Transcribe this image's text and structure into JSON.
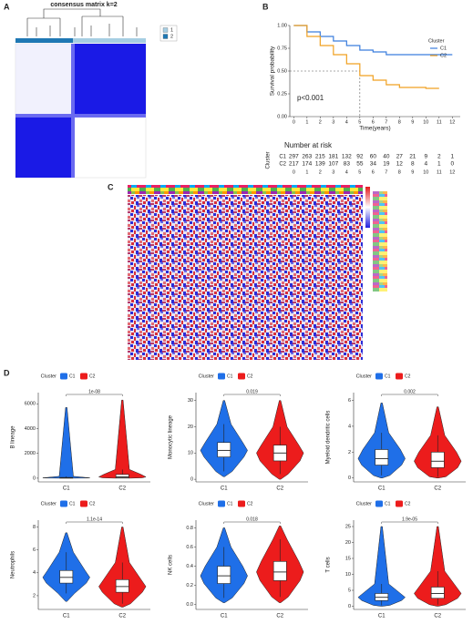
{
  "panel_labels": [
    "A",
    "B",
    "C",
    "D"
  ],
  "chart_data": [
    {
      "type": "consensus",
      "title": "consensus matrix k=2",
      "legend": [
        {
          "name": "1",
          "color": "#a6cee3"
        },
        {
          "name": "2",
          "color": "#1f78b4"
        }
      ]
    },
    {
      "type": "survival",
      "xlabel": "Time(years)",
      "ylabel": "Survival probability",
      "annotation": "p<0.001",
      "legend_title": "Cluster",
      "x": [
        0,
        1,
        2,
        3,
        4,
        5,
        6,
        7,
        8,
        9,
        10,
        11,
        12
      ],
      "series": [
        {
          "name": "C1",
          "color": "#3b7ddd",
          "values": [
            1,
            0.93,
            0.88,
            0.83,
            0.78,
            0.73,
            0.71,
            0.68,
            0.68,
            0.68,
            0.68,
            0.68,
            0.68
          ]
        },
        {
          "name": "C2",
          "color": "#f0a020",
          "values": [
            1,
            0.88,
            0.78,
            0.68,
            0.58,
            0.45,
            0.4,
            0.35,
            0.32,
            0.32,
            0.31,
            0.31,
            null
          ]
        }
      ],
      "xlim": [
        -0.3,
        12.6
      ],
      "ylim": [
        0,
        1
      ],
      "xticks": [
        0,
        1,
        2,
        3,
        4,
        5,
        6,
        7,
        8,
        9,
        10,
        11,
        12
      ],
      "yticks": [
        {
          "value": 0,
          "label": "0.00"
        },
        0.25,
        {
          "value": 0.5,
          "label": "0.50"
        },
        0.75,
        {
          "value": 1,
          "label": "1.00"
        }
      ],
      "risk_table": {
        "title": "Number at risk",
        "ylabel": "Cluster",
        "rows": [
          {
            "name": "C1",
            "values": [
              297,
              263,
              215,
              181,
              132,
              92,
              60,
              40,
              27,
              21,
              9,
              2,
              1
            ]
          },
          {
            "name": "C2",
            "values": [
              217,
              174,
              139,
              107,
              83,
              55,
              34,
              19,
              12,
              8,
              4,
              1,
              0
            ]
          }
        ]
      }
    },
    {
      "type": "violin",
      "ylabel": "B lineage",
      "legend_title": "Cluster",
      "pvalue": "1e-08",
      "categories": [
        "C1",
        "C2"
      ],
      "series": [
        {
          "name": "C1",
          "color": "#1f6fe8",
          "min": 0,
          "whisker_low": 0,
          "q1": 10,
          "median": 30,
          "q3": 60,
          "whisker_high": 150,
          "max": 5700
        },
        {
          "name": "C2",
          "color": "#ec1c1c",
          "min": 0,
          "whisker_low": 0,
          "q1": 30,
          "median": 100,
          "q3": 300,
          "whisker_high": 700,
          "max": 6300
        }
      ],
      "ylim": [
        -300,
        6900
      ],
      "yticks": [
        0,
        2000,
        4000,
        6000
      ]
    },
    {
      "type": "violin",
      "ylabel": "Monocytic lineage",
      "legend_title": "Cluster",
      "pvalue": "0.019",
      "categories": [
        "C1",
        "C2"
      ],
      "series": [
        {
          "name": "C1",
          "color": "#1f6fe8",
          "min": 1,
          "whisker_low": 3,
          "q1": 8.5,
          "median": 11,
          "q3": 14,
          "whisker_high": 21,
          "max": 30
        },
        {
          "name": "C2",
          "color": "#ec1c1c",
          "min": 0,
          "whisker_low": 2,
          "q1": 7,
          "median": 10,
          "q3": 13,
          "whisker_high": 20,
          "max": 30
        }
      ],
      "ylim": [
        -1,
        33
      ],
      "yticks": [
        0,
        10,
        20,
        30
      ]
    },
    {
      "type": "violin",
      "ylabel": "Myeloid dendritic cells",
      "legend_title": "Cluster",
      "pvalue": "0.002",
      "categories": [
        "C1",
        "C2"
      ],
      "series": [
        {
          "name": "C1",
          "color": "#1f6fe8",
          "min": 0,
          "whisker_low": 0.2,
          "q1": 1,
          "median": 1.5,
          "q3": 2.2,
          "whisker_high": 3.5,
          "max": 5.8
        },
        {
          "name": "C2",
          "color": "#ec1c1c",
          "min": 0,
          "whisker_low": 0.1,
          "q1": 0.8,
          "median": 1.3,
          "q3": 2,
          "whisker_high": 3.3,
          "max": 5.5
        }
      ],
      "ylim": [
        -0.3,
        6.6
      ],
      "yticks": [
        0,
        2,
        4,
        6
      ]
    },
    {
      "type": "violin",
      "ylabel": "Neutrophils",
      "legend_title": "Cluster",
      "pvalue": "1.1e-14",
      "categories": [
        "C1",
        "C2"
      ],
      "series": [
        {
          "name": "C1",
          "color": "#1f6fe8",
          "min": 1.5,
          "whisker_low": 2.2,
          "q1": 3.1,
          "median": 3.6,
          "q3": 4.2,
          "whisker_high": 5.8,
          "max": 7.5
        },
        {
          "name": "C2",
          "color": "#ec1c1c",
          "min": 1,
          "whisker_low": 1.3,
          "q1": 2.3,
          "median": 2.8,
          "q3": 3.4,
          "whisker_high": 4.9,
          "max": 8
        }
      ],
      "ylim": [
        0.8,
        8.6
      ],
      "yticks": [
        2,
        4,
        6,
        8
      ]
    },
    {
      "type": "violin",
      "ylabel": "NK cells",
      "legend_title": "Cluster",
      "pvalue": "0.018",
      "categories": [
        "C1",
        "C2"
      ],
      "series": [
        {
          "name": "C1",
          "color": "#1f6fe8",
          "min": 0.02,
          "whisker_low": 0.07,
          "q1": 0.22,
          "median": 0.3,
          "q3": 0.4,
          "whisker_high": 0.6,
          "max": 0.8
        },
        {
          "name": "C2",
          "color": "#ec1c1c",
          "min": 0.02,
          "whisker_low": 0.08,
          "q1": 0.25,
          "median": 0.34,
          "q3": 0.45,
          "whisker_high": 0.68,
          "max": 0.82
        }
      ],
      "ylim": [
        -0.05,
        0.88
      ],
      "yticks": [
        {
          "value": 0,
          "label": "0.0"
        },
        0.2,
        0.4,
        0.6,
        0.8
      ]
    },
    {
      "type": "violin",
      "ylabel": "T cells",
      "legend_title": "Cluster",
      "pvalue": "1.9e-05",
      "categories": [
        "C1",
        "C2"
      ],
      "series": [
        {
          "name": "C1",
          "color": "#1f6fe8",
          "min": 0,
          "whisker_low": 0.3,
          "q1": 1.8,
          "median": 2.8,
          "q3": 4,
          "whisker_high": 7,
          "max": 25
        },
        {
          "name": "C2",
          "color": "#ec1c1c",
          "min": 0,
          "whisker_low": 0.5,
          "q1": 2.5,
          "median": 4,
          "q3": 6,
          "whisker_high": 11,
          "max": 25
        }
      ],
      "ylim": [
        -1,
        27
      ],
      "yticks": [
        0,
        5,
        10,
        15,
        20,
        25
      ]
    }
  ]
}
